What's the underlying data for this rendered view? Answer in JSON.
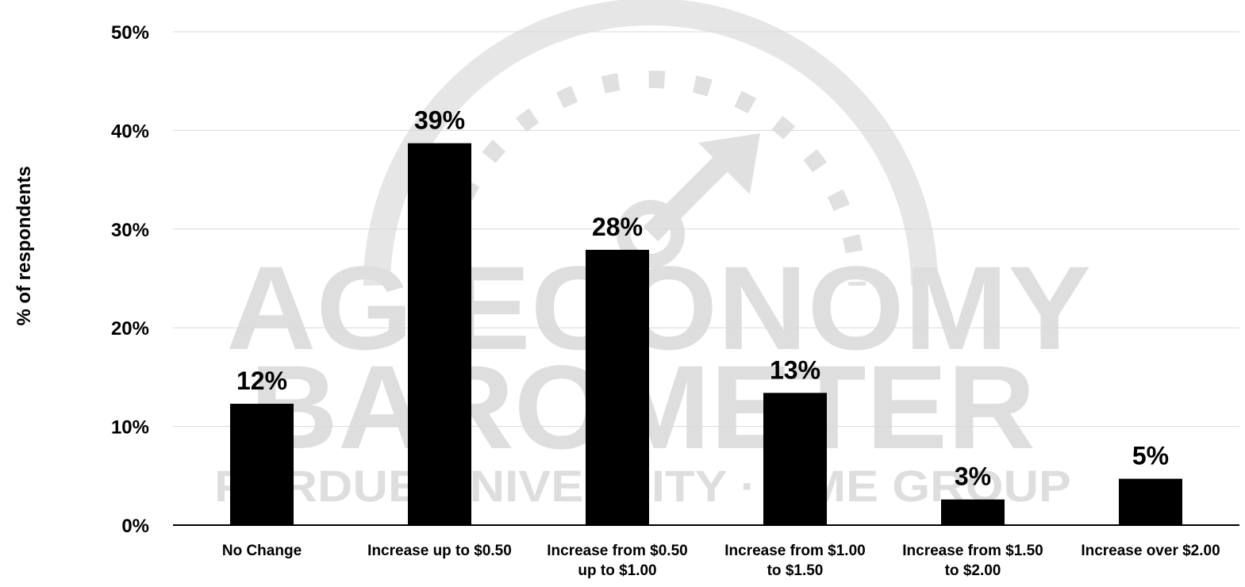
{
  "chart_data": {
    "type": "bar",
    "title": "",
    "xlabel": "",
    "ylabel": "% of respondents",
    "ylim": [
      0,
      50
    ],
    "yticks": [
      0,
      10,
      20,
      30,
      40,
      50
    ],
    "ytick_labels": [
      "0%",
      "10%",
      "20%",
      "30%",
      "40%",
      "50%"
    ],
    "grid": true,
    "legend": "none",
    "categories": [
      [
        "No Change"
      ],
      [
        "Increase up to $0.50"
      ],
      [
        "Increase from $0.50",
        "up to $1.00"
      ],
      [
        "Increase from $1.00",
        "to $1.50"
      ],
      [
        "Increase from $1.50",
        "to $2.00"
      ],
      [
        "Increase over $2.00"
      ]
    ],
    "values": [
      12.3,
      38.7,
      27.9,
      13.4,
      2.6,
      4.7
    ],
    "data_labels": [
      "12%",
      "39%",
      "28%",
      "13%",
      "3%",
      "5%"
    ],
    "bar_color": "#000000",
    "grid_color": "#d9d9d9"
  },
  "watermark": {
    "line1": "AG ECONOMY",
    "line2": "BAROMETER",
    "line3": "PURDUE UNIVERSITY · CME GROUP",
    "color": "#dedede"
  }
}
